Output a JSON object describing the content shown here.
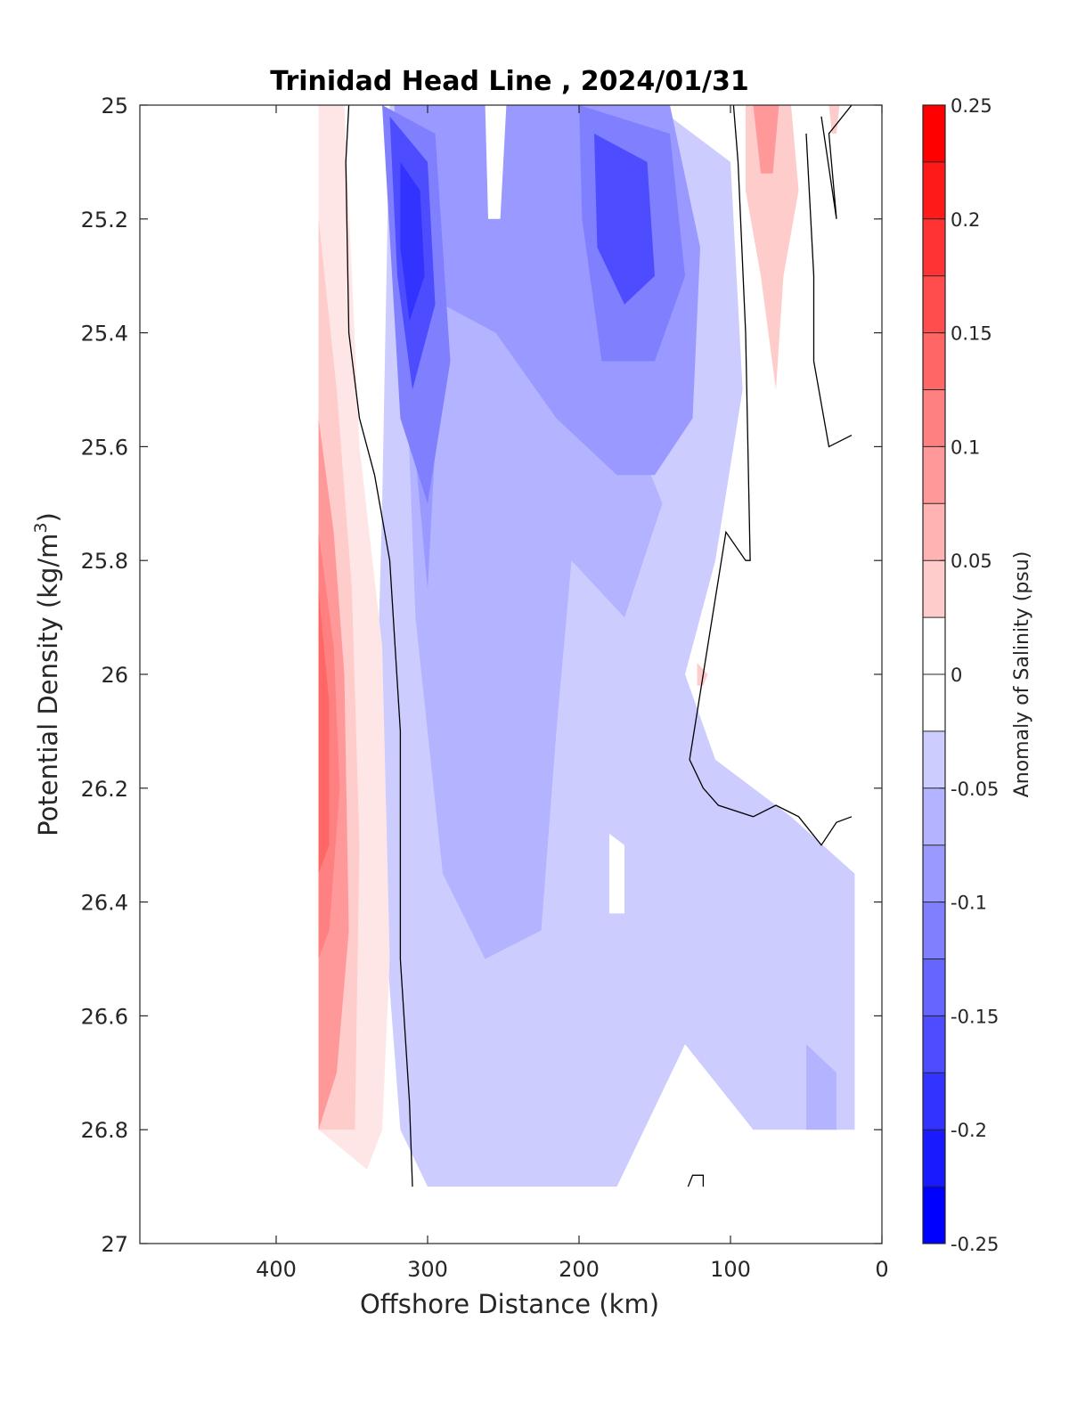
{
  "chart_data": {
    "type": "heatmap",
    "title": "Trinidad Head Line , 2024/01/31",
    "xlabel": "Offshore Distance (km)",
    "ylabel": "Potential Density (kg/m",
    "ylabel_sup": "3",
    "ylabel_close": ")",
    "xlim": [
      490,
      0
    ],
    "ylim": [
      25,
      27
    ],
    "x_reversed": true,
    "y_reversed": true,
    "x_ticks": [
      400,
      300,
      200,
      100,
      0
    ],
    "y_ticks": [
      "25",
      "25.2",
      "25.4",
      "25.6",
      "25.8",
      "26",
      "26.2",
      "26.4",
      "26.6",
      "26.8",
      "27"
    ],
    "y_tick_values": [
      25,
      25.2,
      25.4,
      25.6,
      25.8,
      26,
      26.2,
      26.4,
      26.6,
      26.8,
      27
    ],
    "grid": false,
    "colorbar": {
      "label": "Anomaly of Salinity (psu)",
      "range": [
        -0.25,
        0.25
      ],
      "tick_labels": [
        "0.25",
        "0.2",
        "0.15",
        "0.1",
        "0.05",
        "0",
        "-0.05",
        "-0.1",
        "-0.15",
        "-0.2",
        "-0.25"
      ],
      "tick_values": [
        0.25,
        0.2,
        0.15,
        0.1,
        0.05,
        0,
        -0.05,
        -0.1,
        -0.15,
        -0.2,
        -0.25
      ],
      "levels": 20,
      "colors": [
        "#0000ff",
        "#1a1aff",
        "#3333ff",
        "#4d4dff",
        "#6666ff",
        "#8080ff",
        "#9999ff",
        "#b3b3ff",
        "#ccccff",
        "#e6e6ff",
        "#ffffff",
        "#ffffff",
        "#ffe6e6",
        "#ffcccc",
        "#ffb3b3",
        "#ff9999",
        "#ff8080",
        "#ff6666",
        "#ff4d4d",
        "#ff3333",
        "#ff1a1a",
        "#ff0000"
      ]
    },
    "zero_contour_color": "#000000",
    "data_extent": {
      "x_min_km": 18,
      "x_max_km": 372,
      "y_min": 25,
      "y_max": 26.9
    },
    "regions": [
      {
        "name": "positive-anomaly-offshore",
        "value": 0.15,
        "x_km": [
          372,
          330
        ],
        "y": [
          25,
          26.87
        ]
      },
      {
        "name": "core-negative-anomaly-300km",
        "value": -0.2,
        "x_km": [
          330,
          290
        ],
        "y": [
          25,
          25.7
        ]
      },
      {
        "name": "negative-anomaly-175km",
        "value": -0.15,
        "x_km": [
          200,
          130
        ],
        "y": [
          25,
          25.6
        ]
      },
      {
        "name": "broad-negative-anomaly",
        "value": -0.07,
        "x_km": [
          300,
          100
        ],
        "y": [
          25.6,
          26.9
        ]
      },
      {
        "name": "positive-anomaly-nearshore",
        "value": 0.08,
        "x_km": [
          90,
          55
        ],
        "y": [
          25,
          25.5
        ]
      },
      {
        "name": "near-zero-nearshore",
        "value": 0.0,
        "x_km": [
          100,
          18
        ],
        "y": [
          25.6,
          26.25
        ]
      },
      {
        "name": "weak-negative-nearshore-deep",
        "value": -0.04,
        "x_km": [
          130,
          18
        ],
        "y": [
          26.35,
          26.8
        ]
      }
    ]
  }
}
